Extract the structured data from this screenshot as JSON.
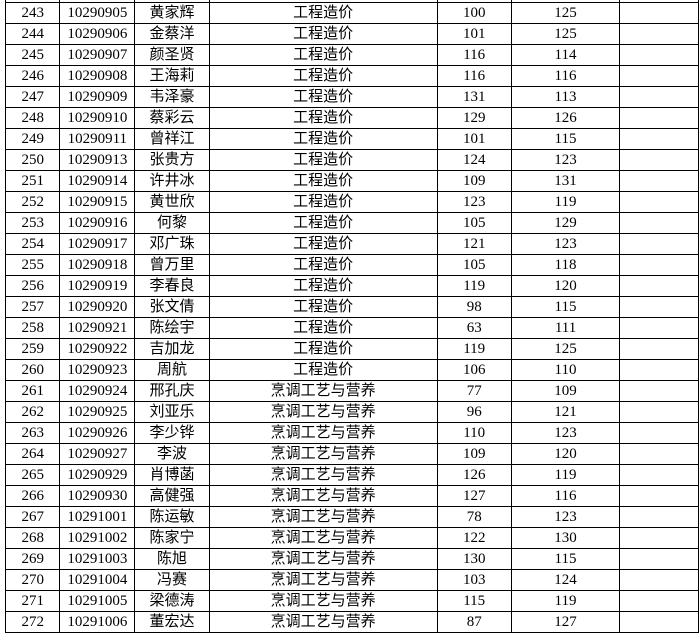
{
  "colors": {
    "background": "#ffffff",
    "grid_line": "#000000",
    "text": "#000000"
  },
  "table": {
    "columns": [
      {
        "key": "index",
        "data_name": "row-number-cell"
      },
      {
        "key": "id",
        "data_name": "student-id-cell"
      },
      {
        "key": "name",
        "data_name": "student-name-cell"
      },
      {
        "key": "major",
        "data_name": "major-cell"
      },
      {
        "key": "score1",
        "data_name": "score-1-cell"
      },
      {
        "key": "score2",
        "data_name": "score-2-cell"
      },
      {
        "key": "blank",
        "data_name": "empty-cell"
      }
    ],
    "rows": [
      [
        "243",
        "10290905",
        "黄家辉",
        "工程造价",
        "100",
        "125",
        ""
      ],
      [
        "244",
        "10290906",
        "金蔡洋",
        "工程造价",
        "101",
        "125",
        ""
      ],
      [
        "245",
        "10290907",
        "颜圣贤",
        "工程造价",
        "116",
        "114",
        ""
      ],
      [
        "246",
        "10290908",
        "王海莉",
        "工程造价",
        "116",
        "116",
        ""
      ],
      [
        "247",
        "10290909",
        "韦泽豪",
        "工程造价",
        "131",
        "113",
        ""
      ],
      [
        "248",
        "10290910",
        "蔡彩云",
        "工程造价",
        "129",
        "126",
        ""
      ],
      [
        "249",
        "10290911",
        "曾祥江",
        "工程造价",
        "101",
        "115",
        ""
      ],
      [
        "250",
        "10290913",
        "张贵方",
        "工程造价",
        "124",
        "123",
        ""
      ],
      [
        "251",
        "10290914",
        "许井冰",
        "工程造价",
        "109",
        "131",
        ""
      ],
      [
        "252",
        "10290915",
        "黄世欣",
        "工程造价",
        "123",
        "119",
        ""
      ],
      [
        "253",
        "10290916",
        "何黎",
        "工程造价",
        "105",
        "129",
        ""
      ],
      [
        "254",
        "10290917",
        "邓广珠",
        "工程造价",
        "121",
        "123",
        ""
      ],
      [
        "255",
        "10290918",
        "曾万里",
        "工程造价",
        "105",
        "118",
        ""
      ],
      [
        "256",
        "10290919",
        "李春良",
        "工程造价",
        "119",
        "120",
        ""
      ],
      [
        "257",
        "10290920",
        "张文倩",
        "工程造价",
        "98",
        "115",
        ""
      ],
      [
        "258",
        "10290921",
        "陈绘宇",
        "工程造价",
        "63",
        "111",
        ""
      ],
      [
        "259",
        "10290922",
        "吉加龙",
        "工程造价",
        "119",
        "125",
        ""
      ],
      [
        "260",
        "10290923",
        "周航",
        "工程造价",
        "106",
        "110",
        ""
      ],
      [
        "261",
        "10290924",
        "邢孔庆",
        "烹调工艺与营养",
        "77",
        "109",
        ""
      ],
      [
        "262",
        "10290925",
        "刘亚乐",
        "烹调工艺与营养",
        "96",
        "121",
        ""
      ],
      [
        "263",
        "10290926",
        "李少铧",
        "烹调工艺与营养",
        "110",
        "123",
        ""
      ],
      [
        "264",
        "10290927",
        "李波",
        "烹调工艺与营养",
        "109",
        "120",
        ""
      ],
      [
        "265",
        "10290929",
        "肖博菡",
        "烹调工艺与营养",
        "126",
        "119",
        ""
      ],
      [
        "266",
        "10290930",
        "高健强",
        "烹调工艺与营养",
        "127",
        "116",
        ""
      ],
      [
        "267",
        "10291001",
        "陈运敏",
        "烹调工艺与营养",
        "78",
        "123",
        ""
      ],
      [
        "268",
        "10291002",
        "陈家宁",
        "烹调工艺与营养",
        "122",
        "130",
        ""
      ],
      [
        "269",
        "10291003",
        "陈旭",
        "烹调工艺与营养",
        "130",
        "115",
        ""
      ],
      [
        "270",
        "10291004",
        "冯赛",
        "烹调工艺与营养",
        "103",
        "124",
        ""
      ],
      [
        "271",
        "10291005",
        "梁德涛",
        "烹调工艺与营养",
        "115",
        "119",
        ""
      ],
      [
        "272",
        "10291006",
        "董宏达",
        "烹调工艺与营养",
        "87",
        "127",
        ""
      ]
    ]
  }
}
